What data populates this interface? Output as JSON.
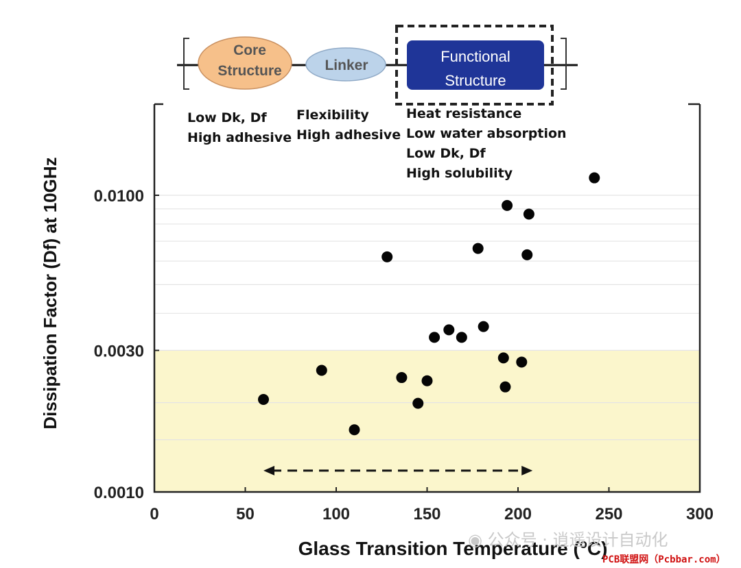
{
  "diagram": {
    "core_label": [
      "Core",
      "Structure"
    ],
    "linker_label": "Linker",
    "functional_label": [
      "Functional",
      "Structure"
    ],
    "colors": {
      "core": "#f6c08a",
      "linker": "#bcd3ea",
      "functional": "#1f3598"
    }
  },
  "annotations": {
    "core": [
      "Low Dk, Df",
      "High adhesive"
    ],
    "linker": [
      "Flexibility",
      "High adhesive"
    ],
    "functional": [
      "Heat resistance",
      "Low water absorption",
      "Low Dk, Df",
      "High solubility"
    ]
  },
  "watermark": {
    "text": "公众号 · 逍遥设计自动化",
    "site": "PCB联盟网（Pcbbar.com）"
  },
  "chart_data": {
    "type": "scatter",
    "xlabel": "Glass Transition Temperature (",
    "xlabel_sup": "o",
    "xlabel_end": "C)",
    "ylabel": "Dissipation Factor (Df) at 10GHz",
    "xlim": [
      0,
      300
    ],
    "ylim": [
      0.001,
      0.016
    ],
    "yscale": "log",
    "xticks": [
      0,
      50,
      100,
      150,
      200,
      250,
      300
    ],
    "xtick_labels": [
      "0",
      "50",
      "100",
      "150",
      "200",
      "250",
      "300"
    ],
    "yticks": [
      0.001,
      0.003,
      0.01
    ],
    "ytick_labels": [
      "0.0010",
      "0.0030",
      "0.0100"
    ],
    "ygrid": [
      0.001,
      0.0015,
      0.002,
      0.003,
      0.004,
      0.005,
      0.006,
      0.007,
      0.008,
      0.009,
      0.01
    ],
    "highlight_band": {
      "ymin": 0.001,
      "ymax": 0.003,
      "color": "#fbf6cc"
    },
    "range_arrow": {
      "x": [
        60,
        208
      ],
      "y": 0.00118
    },
    "points": [
      {
        "x": 60,
        "y": 0.00205
      },
      {
        "x": 92,
        "y": 0.00257
      },
      {
        "x": 110,
        "y": 0.00162
      },
      {
        "x": 128,
        "y": 0.0062
      },
      {
        "x": 136,
        "y": 0.00243
      },
      {
        "x": 145,
        "y": 0.00199
      },
      {
        "x": 150,
        "y": 0.00237
      },
      {
        "x": 154,
        "y": 0.00332
      },
      {
        "x": 162,
        "y": 0.00352
      },
      {
        "x": 169,
        "y": 0.00332
      },
      {
        "x": 178,
        "y": 0.00662
      },
      {
        "x": 181,
        "y": 0.00361
      },
      {
        "x": 192,
        "y": 0.00283
      },
      {
        "x": 193,
        "y": 0.00226
      },
      {
        "x": 194,
        "y": 0.00924
      },
      {
        "x": 202,
        "y": 0.00274
      },
      {
        "x": 205,
        "y": 0.0063
      },
      {
        "x": 206,
        "y": 0.00864
      },
      {
        "x": 242,
        "y": 0.01145
      }
    ]
  }
}
